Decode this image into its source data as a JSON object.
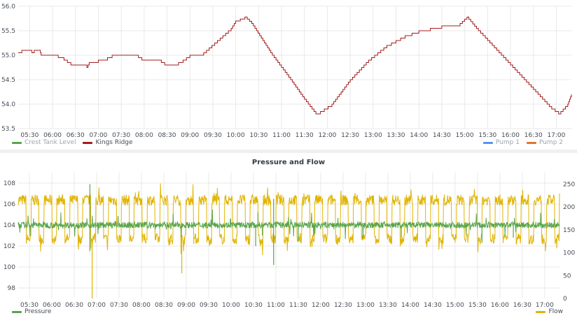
{
  "colors": {
    "crest": "#56a64b",
    "kings": "#a31c1c",
    "pump1": "#5794f2",
    "pump2": "#e0752d",
    "pressure": "#56a64b",
    "flow": "#e0b400",
    "grid": "#e9e9e9"
  },
  "time_ticks": [
    "05:30",
    "06:00",
    "06:30",
    "07:00",
    "07:30",
    "08:00",
    "08:30",
    "09:00",
    "09:30",
    "10:00",
    "10:30",
    "11:00",
    "11:30",
    "12:00",
    "12:30",
    "13:00",
    "13:30",
    "14:00",
    "14:30",
    "15:00",
    "15:30",
    "16:00",
    "16:30",
    "17:00"
  ],
  "top_panel": {
    "legend_left": [
      {
        "name": "Crest Tank Level",
        "color_key": "crest",
        "dim": true
      },
      {
        "name": "Kings Ridge",
        "color_key": "kings",
        "dim": false
      }
    ],
    "legend_right": [
      {
        "name": "Pump 1",
        "color_key": "pump1",
        "dim": true
      },
      {
        "name": "Pump 2",
        "color_key": "pump2",
        "dim": true
      }
    ]
  },
  "bottom_panel": {
    "title": "Pressure and Flow",
    "legend_left": [
      {
        "name": "Pressure",
        "color_key": "pressure"
      }
    ],
    "legend_right": [
      {
        "name": "Flow",
        "color_key": "flow"
      }
    ]
  },
  "chart_data": [
    {
      "type": "line",
      "title": "",
      "x_unit": "hours",
      "x_range": [
        5.25,
        17.33
      ],
      "ylim": [
        53.5,
        56.0
      ],
      "yticks": [
        "53.5",
        "54.0",
        "54.5",
        "55.0",
        "55.5",
        "56.0"
      ],
      "grid": true,
      "legend_position": "bottom-left",
      "series": [
        {
          "name": "Kings Ridge",
          "color_key": "kings",
          "points": [
            [
              5.25,
              55.05
            ],
            [
              5.33,
              55.1
            ],
            [
              5.5,
              55.1
            ],
            [
              5.55,
              55.05
            ],
            [
              5.6,
              55.1
            ],
            [
              5.72,
              55.1
            ],
            [
              5.75,
              55.0
            ],
            [
              6.0,
              55.0
            ],
            [
              6.25,
              54.9
            ],
            [
              6.4,
              54.8
            ],
            [
              6.67,
              54.8
            ],
            [
              6.75,
              54.75
            ],
            [
              6.8,
              54.85
            ],
            [
              7.0,
              54.9
            ],
            [
              7.2,
              54.95
            ],
            [
              7.3,
              55.0
            ],
            [
              7.8,
              55.0
            ],
            [
              7.95,
              54.9
            ],
            [
              8.3,
              54.9
            ],
            [
              8.45,
              54.8
            ],
            [
              8.65,
              54.8
            ],
            [
              8.85,
              54.9
            ],
            [
              9.0,
              55.0
            ],
            [
              9.3,
              55.05
            ],
            [
              9.6,
              55.3
            ],
            [
              9.9,
              55.55
            ],
            [
              10.0,
              55.7
            ],
            [
              10.2,
              55.78
            ],
            [
              10.35,
              55.65
            ],
            [
              10.8,
              55.0
            ],
            [
              11.2,
              54.5
            ],
            [
              11.5,
              54.1
            ],
            [
              11.75,
              53.8
            ],
            [
              11.85,
              53.85
            ],
            [
              12.1,
              54.0
            ],
            [
              12.5,
              54.5
            ],
            [
              12.9,
              54.9
            ],
            [
              13.3,
              55.2
            ],
            [
              13.7,
              55.4
            ],
            [
              14.0,
              55.5
            ],
            [
              14.5,
              55.6
            ],
            [
              14.9,
              55.65
            ],
            [
              15.05,
              55.78
            ],
            [
              15.3,
              55.5
            ],
            [
              15.6,
              55.2
            ],
            [
              16.0,
              54.8
            ],
            [
              16.3,
              54.5
            ],
            [
              16.6,
              54.2
            ],
            [
              16.9,
              53.9
            ],
            [
              17.05,
              53.8
            ],
            [
              17.15,
              53.9
            ],
            [
              17.25,
              54.0
            ],
            [
              17.33,
              54.2
            ]
          ]
        }
      ]
    },
    {
      "type": "line",
      "title": "Pressure and Flow",
      "x_unit": "hours",
      "x_range": [
        5.25,
        17.33
      ],
      "left_axis": {
        "ylim": [
          97,
          109
        ],
        "yticks": [
          "98",
          "100",
          "102",
          "104",
          "106",
          "108"
        ]
      },
      "right_axis": {
        "ylim": [
          0,
          275
        ],
        "yticks": [
          "0",
          "50",
          "100",
          "150",
          "200",
          "250"
        ]
      },
      "grid": true,
      "legend_position": "bottom",
      "series": [
        {
          "name": "Pressure",
          "axis": "left",
          "color_key": "pressure",
          "base": 104.0,
          "noise": 0.3,
          "spikes": [
            [
              6.85,
              107.9
            ],
            [
              6.85,
              101.5
            ],
            [
              10.55,
              102.0
            ],
            [
              10.6,
              105.2
            ],
            [
              10.95,
              106.5
            ],
            [
              10.95,
              100.2
            ],
            [
              10.7,
              103.0
            ],
            [
              11.5,
              102.5
            ],
            [
              13.8,
              102.8
            ],
            [
              15.6,
              102.3
            ],
            [
              16.3,
              102.8
            ]
          ]
        },
        {
          "name": "Flow",
          "axis": "right",
          "color_key": "flow",
          "high": 215,
          "low": 130,
          "cycles": 42,
          "noise": 12,
          "dips": [
            [
              6.9,
              0
            ],
            [
              8.9,
              55
            ]
          ]
        }
      ]
    }
  ]
}
